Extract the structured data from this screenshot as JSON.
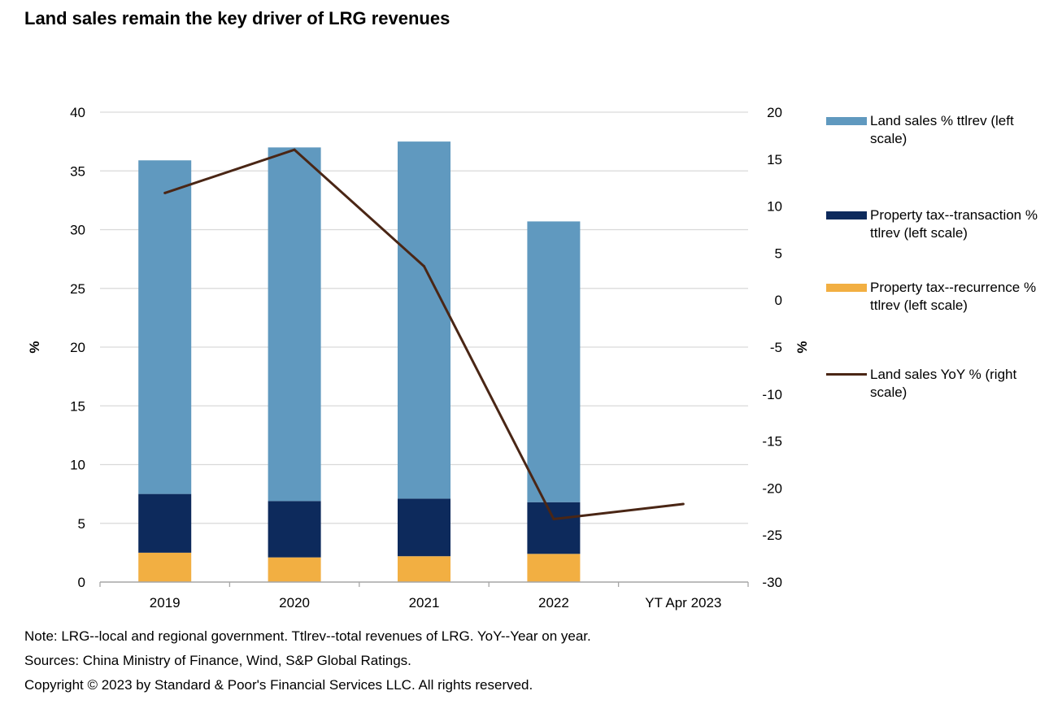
{
  "title": "Land sales remain the key driver of LRG revenues",
  "notes": [
    "Note: LRG--local and regional government. Ttlrev--total revenues of LRG. YoY--Year on year.",
    "Sources: China Ministry of Finance, Wind, S&P Global Ratings.",
    "Copyright © 2023 by Standard & Poor's Financial Services LLC. All rights reserved."
  ],
  "chart_data": {
    "type": "bar",
    "stacked": true,
    "categories": [
      "2019",
      "2020",
      "2021",
      "2022",
      "YT Apr 2023"
    ],
    "series": [
      {
        "name": "Property tax--recurrence % ttlrev (left scale)",
        "type": "bar",
        "axis": "left",
        "color": "#F2AF42",
        "values": [
          2.5,
          2.1,
          2.2,
          2.4,
          null
        ]
      },
      {
        "name": "Property tax--transaction % ttlrev (left scale)",
        "type": "bar",
        "axis": "left",
        "color": "#0D2A5C",
        "values": [
          5.0,
          4.8,
          4.9,
          4.4,
          null
        ]
      },
      {
        "name": "Land sales % ttlrev (left scale)",
        "type": "bar",
        "axis": "left",
        "color": "#6099BF",
        "values": [
          28.4,
          30.1,
          30.4,
          23.9,
          null
        ]
      },
      {
        "name": "Land sales YoY % (right scale)",
        "type": "line",
        "axis": "right",
        "color": "#4A2615",
        "values": [
          11.4,
          16.0,
          3.6,
          -23.3,
          -21.7
        ]
      }
    ],
    "legend_order": [
      2,
      1,
      0,
      3
    ],
    "y_left": {
      "label": "%",
      "range": [
        0,
        40
      ],
      "ticks": [
        "0",
        "5",
        "10",
        "15",
        "20",
        "25",
        "30",
        "35",
        "40"
      ]
    },
    "y_right": {
      "label": "%",
      "range": [
        -30,
        20
      ],
      "ticks": [
        "-30",
        "-25",
        "-20",
        "-15",
        "-10",
        "-5",
        "0",
        "5",
        "10",
        "15",
        "20"
      ]
    },
    "grid": true,
    "legend_position": "right"
  }
}
